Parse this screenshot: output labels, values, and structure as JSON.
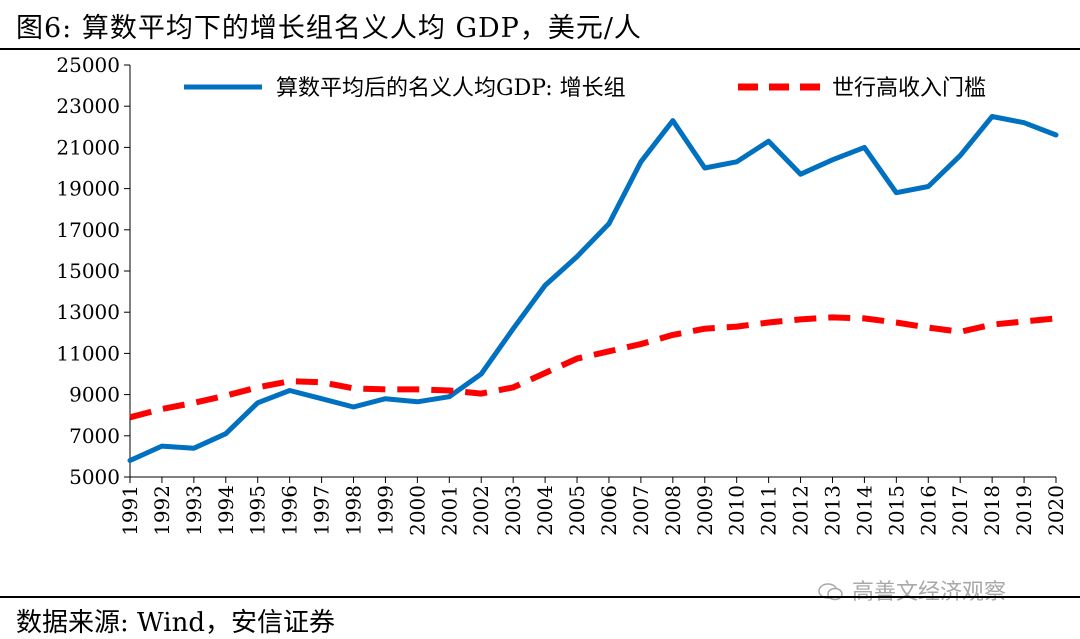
{
  "header": {
    "title": "图6:  算数平均下的增长组名义人均 GDP，美元/人"
  },
  "footer": {
    "source": "数据来源:  Wind，安信证券",
    "watermark": "高善文经济观察"
  },
  "chart_data": {
    "type": "line",
    "title": "图6:  算数平均下的增长组名义人均 GDP，美元/人",
    "xlabel": "",
    "ylabel": "",
    "ylim": [
      5000,
      25000
    ],
    "yticks": [
      5000,
      7000,
      9000,
      11000,
      13000,
      15000,
      17000,
      19000,
      21000,
      23000,
      25000
    ],
    "categories": [
      "1991",
      "1992",
      "1993",
      "1994",
      "1995",
      "1996",
      "1997",
      "1998",
      "1999",
      "2000",
      "2001",
      "2002",
      "2003",
      "2004",
      "2005",
      "2006",
      "2007",
      "2008",
      "2009",
      "2010",
      "2011",
      "2012",
      "2013",
      "2014",
      "2015",
      "2016",
      "2017",
      "2018",
      "2019",
      "2020"
    ],
    "legend_position": "top",
    "series": [
      {
        "name": "算数平均后的名义人均GDP:  增长组",
        "color": "#0070C0",
        "style": "solid",
        "values": [
          5800,
          6500,
          6400,
          7100,
          8600,
          9200,
          8800,
          8400,
          8800,
          8650,
          8900,
          10000,
          12200,
          14300,
          15700,
          17300,
          20300,
          22300,
          20000,
          20300,
          21300,
          19700,
          20400,
          21000,
          18800,
          19100,
          20600,
          22500,
          22200,
          21600
        ]
      },
      {
        "name": "世行高收入门槛",
        "color": "#FF0000",
        "style": "dashed",
        "values": [
          7900,
          8300,
          8600,
          8950,
          9350,
          9650,
          9600,
          9300,
          9250,
          9250,
          9200,
          9050,
          9350,
          10050,
          10750,
          11100,
          11450,
          11900,
          12200,
          12300,
          12500,
          12650,
          12750,
          12700,
          12500,
          12250,
          12050,
          12400,
          12550,
          12700
        ]
      }
    ]
  }
}
